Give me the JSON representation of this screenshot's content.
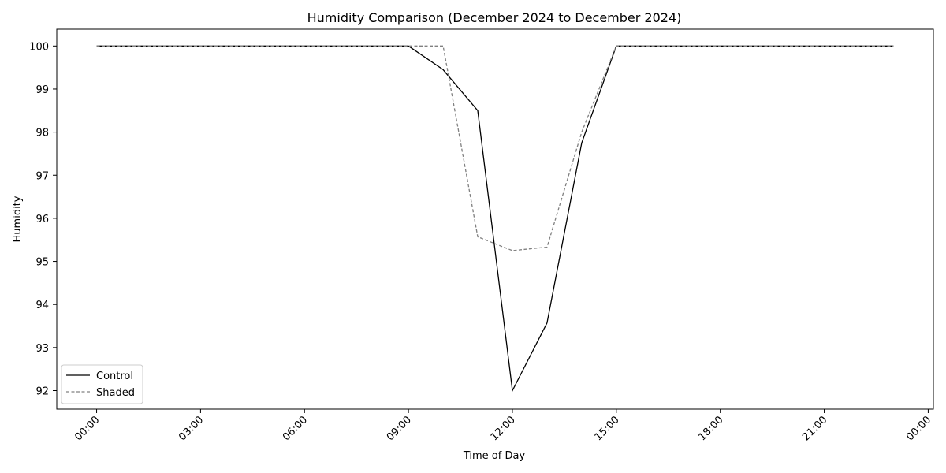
{
  "chart_data": {
    "type": "line",
    "title": "Humidity Comparison (December 2024 to December 2024)",
    "xlabel": "Time of Day",
    "ylabel": "Humidity",
    "x_tick_labels": [
      "00:00",
      "03:00",
      "06:00",
      "09:00",
      "12:00",
      "15:00",
      "18:00",
      "21:00",
      "00:00"
    ],
    "x_tick_hours": [
      0,
      3,
      6,
      9,
      12,
      15,
      18,
      21,
      24
    ],
    "xlim_hours": [
      -1.15,
      24.15
    ],
    "y_ticks": [
      92,
      93,
      94,
      95,
      96,
      97,
      98,
      99,
      100
    ],
    "ylim": [
      91.57,
      100.39
    ],
    "grid": false,
    "legend_position": "lower-left",
    "x_hours": [
      0,
      1,
      2,
      3,
      4,
      5,
      6,
      7,
      8,
      9,
      10,
      11,
      12,
      13,
      14,
      15,
      16,
      17,
      18,
      19,
      20,
      21,
      22,
      23
    ],
    "series": [
      {
        "name": "Control",
        "color": "#000000",
        "dash": "solid",
        "values": [
          100,
          100,
          100,
          100,
          100,
          100,
          100,
          100,
          100,
          100,
          99.45,
          98.5,
          92.0,
          93.57,
          97.75,
          100,
          100,
          100,
          100,
          100,
          100,
          100,
          100,
          100
        ]
      },
      {
        "name": "Shaded",
        "color": "#808080",
        "dash": "dashed",
        "values": [
          100,
          100,
          100,
          100,
          100,
          100,
          100,
          100,
          100,
          100,
          100,
          95.57,
          95.25,
          95.33,
          98.0,
          100,
          100,
          100,
          100,
          100,
          100,
          100,
          100,
          100
        ]
      }
    ]
  }
}
